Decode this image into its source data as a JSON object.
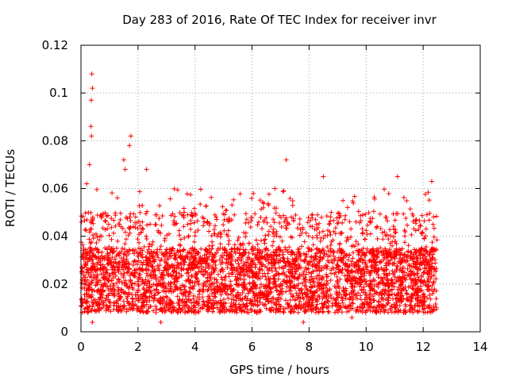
{
  "chart_data": {
    "type": "scatter",
    "title": "Day 283 of 2016, Rate Of TEC Index for receiver invr",
    "xlabel": "GPS time / hours",
    "ylabel": "ROTI / TECUs",
    "xlim": [
      0,
      14
    ],
    "ylim": [
      0,
      0.12
    ],
    "xticks": [
      "0",
      "2",
      "4",
      "6",
      "8",
      "10",
      "12",
      "14"
    ],
    "xtick_values": [
      0,
      2,
      4,
      6,
      8,
      10,
      12,
      14
    ],
    "yticks": [
      "0",
      "0.02",
      "0.04",
      "0.06",
      "0.08",
      "0.1",
      "0.12"
    ],
    "ytick_values": [
      0,
      0.02,
      0.04,
      0.06,
      0.08,
      0.1,
      0.12
    ],
    "grid": true,
    "marker": "+",
    "color": "#ff0000",
    "series": [
      {
        "name": "ROTI",
        "x_range": [
          0.0,
          12.5
        ],
        "typical_range": [
          0.008,
          0.035
        ],
        "notable_points": [
          {
            "x": 0.38,
            "y": 0.108
          },
          {
            "x": 0.4,
            "y": 0.102
          },
          {
            "x": 0.36,
            "y": 0.097
          },
          {
            "x": 0.35,
            "y": 0.086
          },
          {
            "x": 0.37,
            "y": 0.082
          },
          {
            "x": 0.3,
            "y": 0.07
          },
          {
            "x": 1.75,
            "y": 0.082
          },
          {
            "x": 1.7,
            "y": 0.078
          },
          {
            "x": 1.5,
            "y": 0.072
          },
          {
            "x": 1.55,
            "y": 0.068
          },
          {
            "x": 2.3,
            "y": 0.068
          },
          {
            "x": 7.2,
            "y": 0.072
          },
          {
            "x": 8.5,
            "y": 0.065
          },
          {
            "x": 11.1,
            "y": 0.065
          },
          {
            "x": 12.3,
            "y": 0.063
          },
          {
            "x": 0.2,
            "y": 0.062
          },
          {
            "x": 6.8,
            "y": 0.06
          },
          {
            "x": 0.4,
            "y": 0.004
          },
          {
            "x": 2.8,
            "y": 0.004
          },
          {
            "x": 9.5,
            "y": 0.006
          },
          {
            "x": 7.8,
            "y": 0.004
          }
        ]
      }
    ]
  }
}
